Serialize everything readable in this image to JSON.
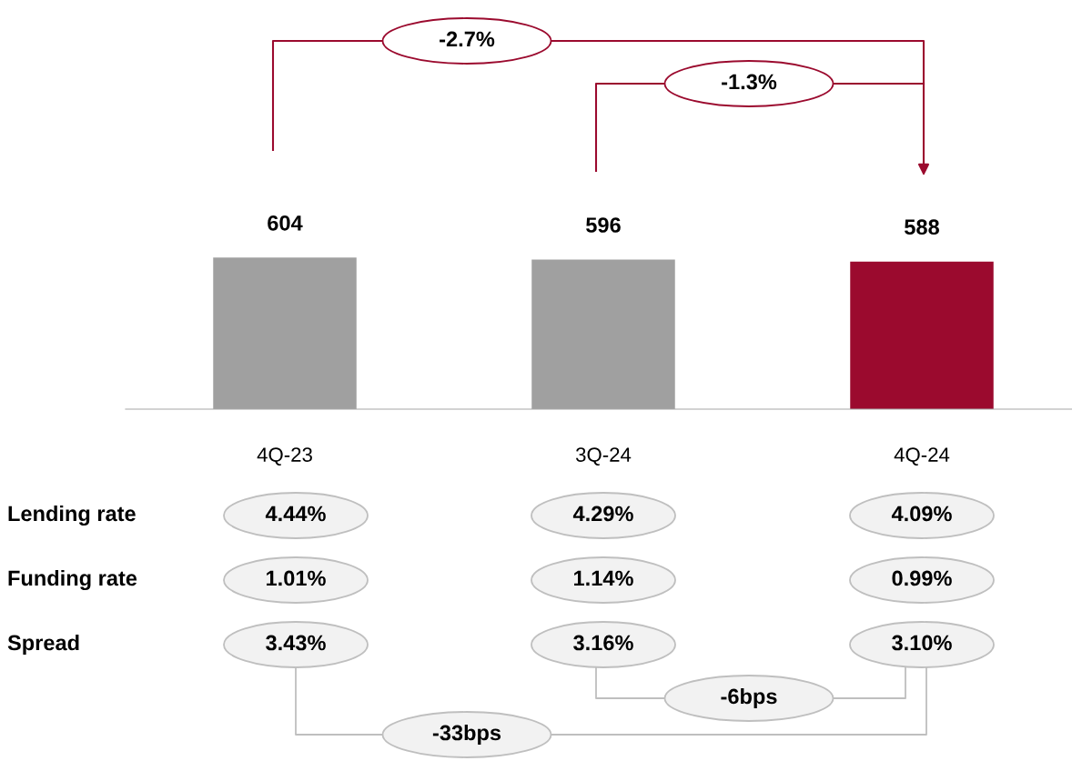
{
  "chart_data": {
    "type": "bar",
    "categories": [
      "4Q-23",
      "3Q-24",
      "4Q-24"
    ],
    "values": [
      604,
      596,
      588
    ],
    "colors": [
      "#a0a0a0",
      "#a0a0a0",
      "#9b0a2e"
    ],
    "data_labels": true,
    "grid": false,
    "legend": false,
    "tick_labels": "x",
    "annotations": [
      "-2.7%",
      "-1.3%",
      "Lending rate",
      "4.44%",
      "4.29%",
      "4.09%",
      "Funding rate",
      "1.01%",
      "1.14%",
      "0.99%",
      "Spread",
      "3.43%",
      "3.16%",
      "3.10%",
      "-6bps",
      "-33bps"
    ]
  }
}
